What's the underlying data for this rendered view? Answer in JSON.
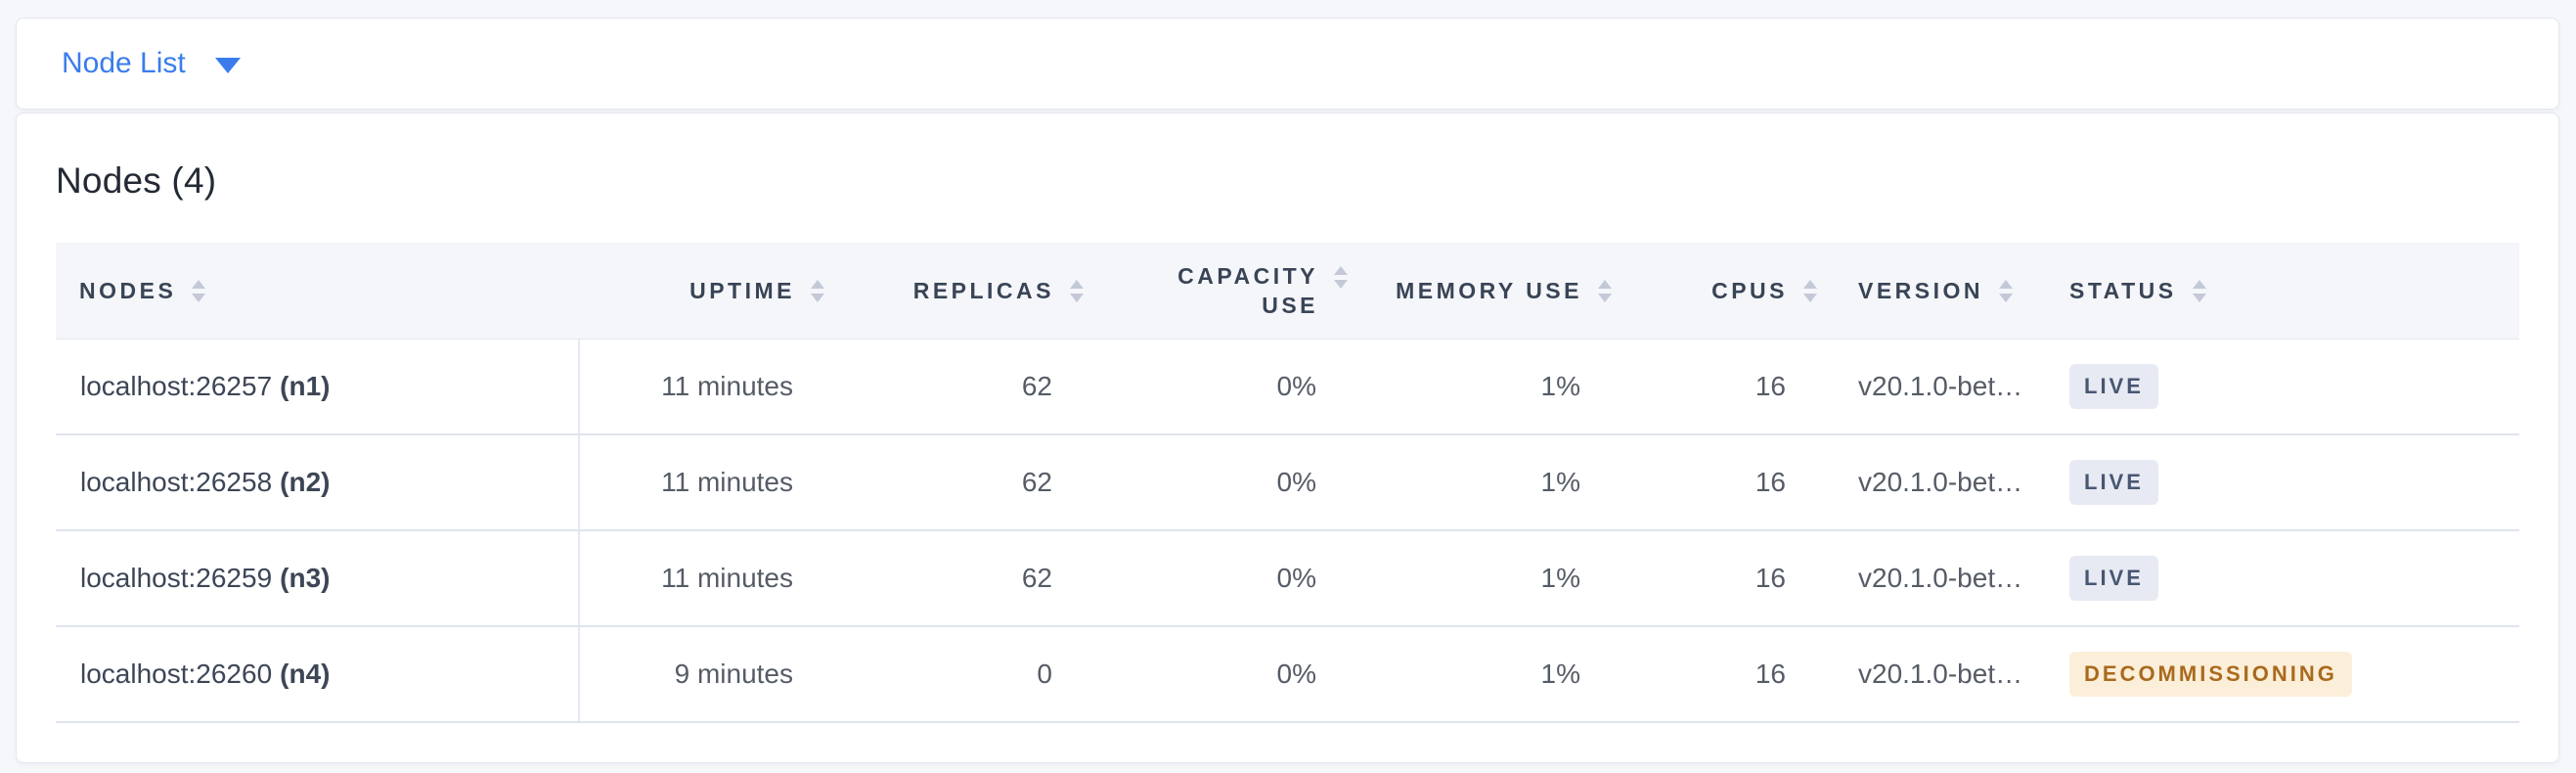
{
  "toolbar": {
    "dropdown_label": "Node List"
  },
  "nodes_section": {
    "title": "Nodes (4)",
    "table": {
      "columns": [
        {
          "key": "nodes",
          "label": "NODES",
          "align": "left",
          "wrap": false
        },
        {
          "key": "uptime",
          "label": "UPTIME",
          "align": "right",
          "wrap": false
        },
        {
          "key": "replicas",
          "label": "REPLICAS",
          "align": "right",
          "wrap": false
        },
        {
          "key": "capacity_use",
          "label": "CAPACITY USE",
          "align": "right",
          "wrap": true
        },
        {
          "key": "memory_use",
          "label": "MEMORY USE",
          "align": "right",
          "wrap": false
        },
        {
          "key": "cpus",
          "label": "CPUS",
          "align": "right",
          "wrap": false
        },
        {
          "key": "version",
          "label": "VERSION",
          "align": "left",
          "wrap": false
        },
        {
          "key": "status",
          "label": "STATUS",
          "align": "left",
          "wrap": false
        }
      ],
      "rows": [
        {
          "address": "localhost:26257",
          "node_id": "(n1)",
          "uptime": "11 minutes",
          "replicas": "62",
          "capacity_use": "0%",
          "memory_use": "1%",
          "cpus": "16",
          "version": "v20.1.0-bet…",
          "status": "LIVE",
          "status_type": "live"
        },
        {
          "address": "localhost:26258",
          "node_id": "(n2)",
          "uptime": "11 minutes",
          "replicas": "62",
          "capacity_use": "0%",
          "memory_use": "1%",
          "cpus": "16",
          "version": "v20.1.0-bet…",
          "status": "LIVE",
          "status_type": "live"
        },
        {
          "address": "localhost:26259",
          "node_id": "(n3)",
          "uptime": "11 minutes",
          "replicas": "62",
          "capacity_use": "0%",
          "memory_use": "1%",
          "cpus": "16",
          "version": "v20.1.0-bet…",
          "status": "LIVE",
          "status_type": "live"
        },
        {
          "address": "localhost:26260",
          "node_id": "(n4)",
          "uptime": "9 minutes",
          "replicas": "0",
          "capacity_use": "0%",
          "memory_use": "1%",
          "cpus": "16",
          "version": "v20.1.0-bet…",
          "status": "DECOMMISSIONING",
          "status_type": "decommissioning"
        }
      ]
    }
  },
  "icons": {
    "dropdown_caret": "chevron-down-icon",
    "sort": "sort-arrows-icon"
  },
  "colors": {
    "page-bg": "#f5f7fa",
    "card-bg": "#ffffff",
    "card-border": "#e3e7ee",
    "accent": "#3a7cec",
    "title": "#242a35",
    "th": "#394455",
    "cell": "#565c66",
    "cell-strong": "#3d4656",
    "sep": "#dfe4ee",
    "divider": "#e4e8f0",
    "sort": "#c3c9d6",
    "header-bg": "#f4f6fa",
    "live-bg": "#e7eaf3",
    "live-text": "#475672",
    "decom-bg": "#fcefd9",
    "decom-text": "#a96a1e"
  }
}
